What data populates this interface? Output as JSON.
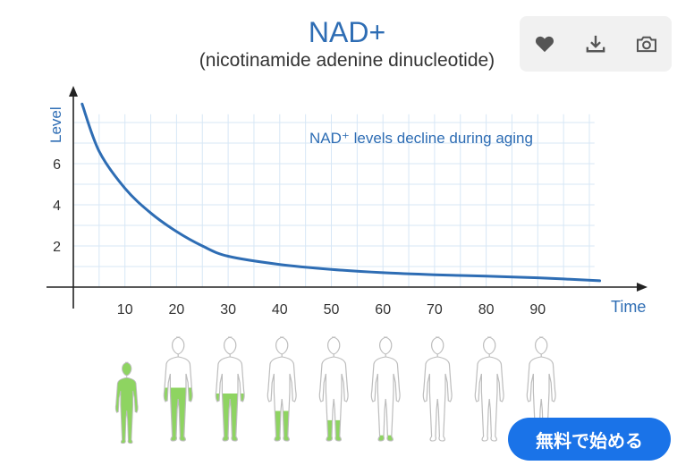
{
  "header": {
    "title": "NAD+",
    "subtitle": "(nicotinamide adenine dinucleotide)"
  },
  "actions": [
    {
      "icon": "heart-icon"
    },
    {
      "icon": "download-icon"
    },
    {
      "icon": "camera-icon"
    }
  ],
  "cta": {
    "label": "無料で始める",
    "color": "#1a73e8"
  },
  "chart_data": {
    "type": "line",
    "title": "",
    "annotation": "NAD⁺ levels decline during aging",
    "xlabel": "Time",
    "ylabel": "Level",
    "xlim": [
      0,
      107
    ],
    "ylim": [
      0,
      9.5
    ],
    "xticks": [
      10,
      20,
      30,
      40,
      50,
      60,
      70,
      80,
      90
    ],
    "yticks": [
      2,
      4,
      6
    ],
    "grid": true,
    "color": "#2e6db4",
    "series": [
      {
        "x": [
          1.7,
          5,
          10,
          15,
          20,
          25,
          30,
          40,
          50,
          60,
          70,
          80,
          90,
          102
        ],
        "y": [
          8.9,
          6.6,
          4.8,
          3.6,
          2.7,
          2.0,
          1.5,
          1.1,
          0.86,
          0.7,
          0.6,
          0.53,
          0.45,
          0.31
        ]
      }
    ]
  },
  "figures": {
    "fill_color": "#8ed461",
    "fill_levels": [
      1.0,
      0.55,
      0.5,
      0.35,
      0.27,
      0.14,
      0.07,
      0.06,
      0
    ]
  }
}
